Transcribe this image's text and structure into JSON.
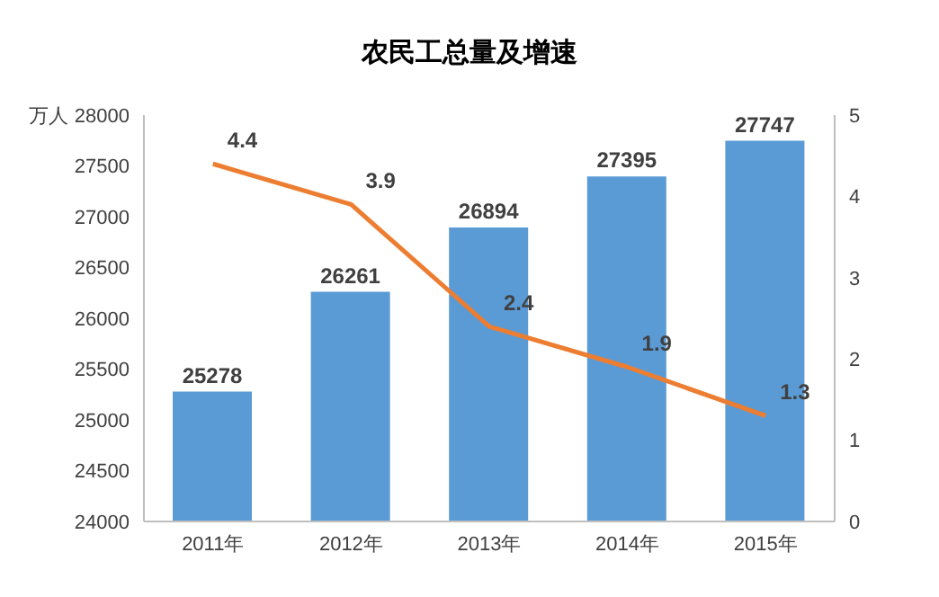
{
  "chart_data": {
    "type": "bar",
    "title": "农民工总量及增速",
    "ylabel": "万人",
    "categories": [
      "2011年",
      "2012年",
      "2013年",
      "2014年",
      "2015年"
    ],
    "series": [
      {
        "color": "#5b9bd5",
        "values": [
          25278,
          26261,
          26894,
          27395,
          27747
        ]
      },
      {
        "type": "line",
        "axis": "y2",
        "color": "#ed7d31",
        "values": [
          4.4,
          3.9,
          2.4,
          1.9,
          1.3
        ]
      }
    ],
    "ylim": [
      24000,
      28000
    ],
    "yticks": [
      24000,
      24500,
      25000,
      25500,
      26000,
      26500,
      27000,
      27500,
      28000
    ],
    "y2lim": [
      0,
      5
    ],
    "y2ticks": [
      0,
      1,
      2,
      3,
      4,
      5
    ],
    "data_labels": true,
    "grid": false,
    "legend": false,
    "marker": "none",
    "line_style": "solid"
  }
}
